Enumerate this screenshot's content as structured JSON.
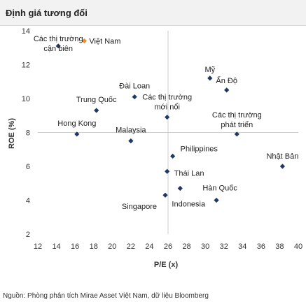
{
  "chart_data": {
    "type": "scatter",
    "title": "Định giá tương đối",
    "xlabel": "P/E (x)",
    "ylabel": "ROE (%)",
    "xlim": [
      12,
      40
    ],
    "ylim": [
      2,
      14
    ],
    "x_ticks": [
      12,
      14,
      16,
      18,
      20,
      22,
      24,
      26,
      28,
      30,
      32,
      34,
      36,
      38,
      40
    ],
    "y_ticks": [
      2,
      4,
      6,
      8,
      10,
      12,
      14
    ],
    "reference_lines": {
      "x": 26,
      "y": 8
    },
    "grid": false,
    "legend": "none",
    "colors": {
      "default": "#1f3864",
      "highlight": "#f28c28",
      "reference": "#cccccc"
    },
    "points": [
      {
        "name": "Việt Nam",
        "x": 17.0,
        "y": 13.4,
        "highlight": true
      },
      {
        "name": "Các thị trường cận biên",
        "x": 14.2,
        "y": 13.1
      },
      {
        "name": "Mỹ",
        "x": 30.5,
        "y": 11.2
      },
      {
        "name": "Ấn Độ",
        "x": 32.3,
        "y": 10.5
      },
      {
        "name": "Đài Loan",
        "x": 22.4,
        "y": 10.1
      },
      {
        "name": "Trung Quốc",
        "x": 18.3,
        "y": 9.3
      },
      {
        "name": "Các thị trường mới nổi",
        "x": 25.9,
        "y": 8.9
      },
      {
        "name": "Hong Kong",
        "x": 16.2,
        "y": 7.9
      },
      {
        "name": "Malaysia",
        "x": 22.0,
        "y": 7.5
      },
      {
        "name": "Các thị trường phát triển",
        "x": 33.4,
        "y": 7.9
      },
      {
        "name": "Philippines",
        "x": 26.5,
        "y": 6.6
      },
      {
        "name": "Nhật Bản",
        "x": 38.3,
        "y": 6.0
      },
      {
        "name": "Thái Lan",
        "x": 25.9,
        "y": 5.7
      },
      {
        "name": "Hàn Quốc",
        "x": 31.2,
        "y": 4.0
      },
      {
        "name": "Indonesia",
        "x": 27.3,
        "y": 4.7
      },
      {
        "name": "Singapore",
        "x": 25.7,
        "y": 4.3
      }
    ]
  },
  "source_note": "Nguồn: Phòng phân tích Mirae Asset Việt Nam, dữ liệu Bloomberg"
}
